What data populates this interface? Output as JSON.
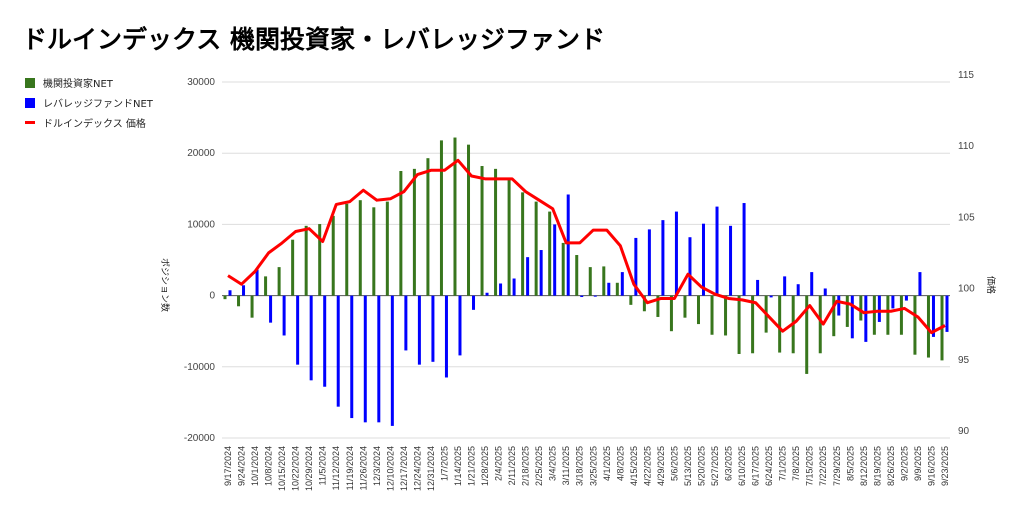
{
  "title": "ドルインデックス 機関投資家・レバレッジファンド",
  "chart_data": {
    "type": "bar+line",
    "title": "ドルインデックス 機関投資家・レバレッジファンド",
    "ylabel_left": "ポジション数",
    "ylabel_right": "価格",
    "ylim_left": [
      -20000,
      30000
    ],
    "ylim_right": [
      90,
      115
    ],
    "yticks_left": [
      "30000",
      "20000",
      "10000",
      "0",
      "-10000",
      "-20000"
    ],
    "yticks_right": [
      "115",
      "110",
      "105",
      "100",
      "95",
      "90"
    ],
    "legend_position": "top-left",
    "grid": true,
    "categories": [
      "9/17/2024",
      "9/24/2024",
      "10/1/2024",
      "10/8/2024",
      "10/15/2024",
      "10/22/2024",
      "10/29/2024",
      "11/5/2024",
      "11/12/2024",
      "11/19/2024",
      "11/26/2024",
      "12/3/2024",
      "12/10/2024",
      "12/17/2024",
      "12/24/2024",
      "12/31/2024",
      "1/7/2025",
      "1/14/2025",
      "1/21/2025",
      "1/28/2025",
      "2/4/2025",
      "2/11/2025",
      "2/18/2025",
      "2/25/2025",
      "3/4/2025",
      "3/11/2025",
      "3/18/2025",
      "3/25/2025",
      "4/1/2025",
      "4/8/2025",
      "4/15/2025",
      "4/22/2025",
      "4/29/2025",
      "5/6/2025",
      "5/13/2025",
      "5/20/2025",
      "5/27/2025",
      "6/3/2025",
      "6/10/2025",
      "6/17/2025",
      "6/24/2025",
      "7/1/2025",
      "7/8/2025",
      "7/15/2025",
      "7/22/2025",
      "7/29/2025",
      "8/5/2025",
      "8/12/2025",
      "8/19/2025",
      "8/26/2025",
      "9/2/2025",
      "9/9/2025",
      "9/16/2025",
      "9/23/2025"
    ],
    "series": [
      {
        "name": "機関投資家NET",
        "type": "bar",
        "axis": "left",
        "color": "#38761d",
        "values": [
          -500,
          -1500,
          -3100,
          2700,
          4000,
          7850,
          9800,
          10050,
          11200,
          12900,
          13400,
          12400,
          13200,
          17500,
          17800,
          19300,
          21800,
          22200,
          21200,
          18200,
          17800,
          16300,
          14500,
          13200,
          11800,
          7400,
          5700,
          4000,
          4100,
          1800,
          -1300,
          -2200,
          -3000,
          -5000,
          -3100,
          -4000,
          -5500,
          -5600,
          -8200,
          -8100,
          -5200,
          -8000,
          -8100,
          -11000,
          -8100,
          -5700,
          -4400,
          -3500,
          -5500,
          -5500,
          -5500,
          -8300,
          -8700,
          -9100
        ]
      },
      {
        "name": "レバレッジファンドNET",
        "type": "bar",
        "axis": "left",
        "color": "#0000ff",
        "values": [
          750,
          1450,
          3650,
          -3800,
          -5600,
          -9700,
          -11900,
          -12800,
          -15600,
          -17200,
          -17800,
          -17800,
          -18300,
          -7700,
          -9700,
          -9300,
          -11500,
          -8400,
          -2000,
          400,
          1700,
          2400,
          5400,
          6400,
          10000,
          14200,
          -200,
          -150,
          1800,
          3300,
          8100,
          9300,
          10600,
          11800,
          8200,
          10100,
          12500,
          9800,
          13000,
          2200,
          -250,
          2700,
          1600,
          3300,
          1000,
          -2800,
          -6000,
          -6500,
          -3700,
          -1800,
          -700,
          3300,
          -5800,
          -5100
        ]
      },
      {
        "name": "ドルインデックス 価格",
        "type": "line",
        "axis": "right",
        "color": "#ff0000",
        "values": [
          101.4,
          100.8,
          101.7,
          103.0,
          103.7,
          104.5,
          104.7,
          103.8,
          106.4,
          106.6,
          107.4,
          106.7,
          106.8,
          107.3,
          108.5,
          108.8,
          108.8,
          109.5,
          108.4,
          108.2,
          108.2,
          108.2,
          107.3,
          106.7,
          106.1,
          103.7,
          103.7,
          104.6,
          104.6,
          103.5,
          100.8,
          99.5,
          99.8,
          99.8,
          101.5,
          100.6,
          100.1,
          99.8,
          99.7,
          99.5,
          98.5,
          97.5,
          98.2,
          99.3,
          98.0,
          99.6,
          99.4,
          98.8,
          98.9,
          98.9,
          99.1,
          98.5,
          97.4,
          97.9
        ]
      }
    ]
  }
}
